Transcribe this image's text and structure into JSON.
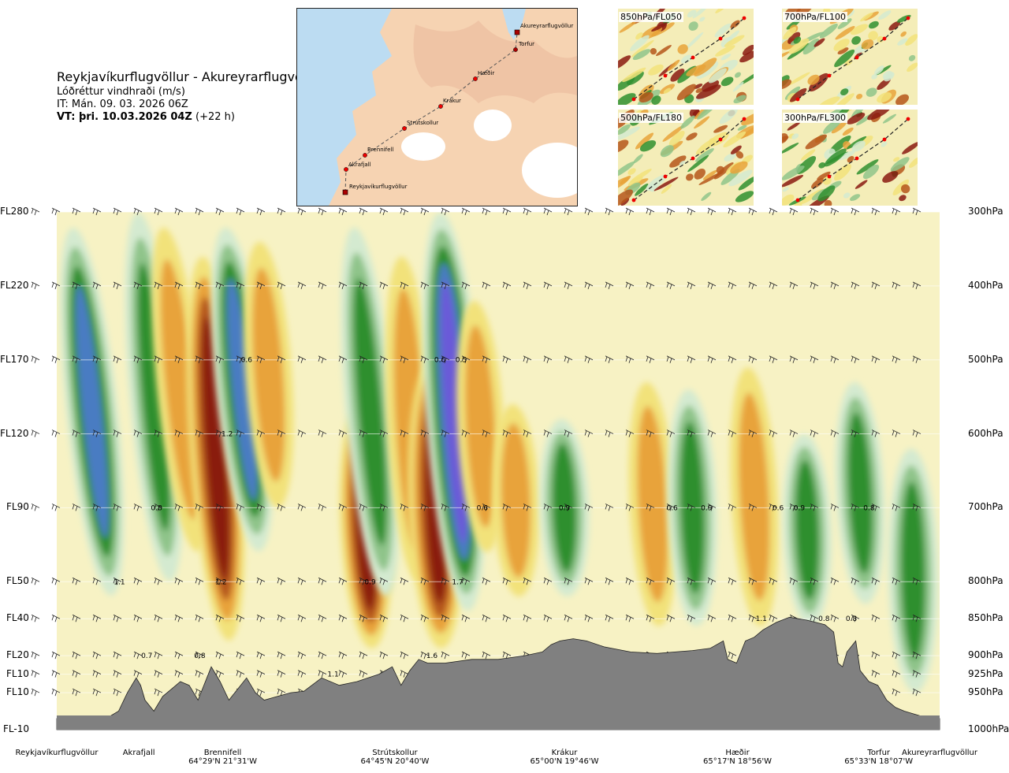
{
  "header": {
    "title": "Reykjavíkurflugvöllur - Akureyrarflugvöllur",
    "variable": "Lóðréttur vindhraði (m/s)",
    "init_time": "IT: Mán. 09. 03. 2026 06Z",
    "valid_prefix": "VT: þri. 10.03.2026 04Z",
    "valid_suffix": " (+22 h)"
  },
  "map": {
    "points": [
      "Akureyrarflugvöllur",
      "Torfur",
      "Hæðir",
      "Krákur",
      "Strútskollur",
      "Brennifell",
      "Akrafjall",
      "Reykjavíkurflugvöllur"
    ]
  },
  "mini_maps": [
    "850hPa/FL050",
    "700hPa/FL100",
    "500hPa/FL180",
    "300hPa/FL300"
  ],
  "colors": {
    "descent_strong": "#8a1a10",
    "descent_mid": "#b5561a",
    "descent_low": "#e8a33a",
    "descent_weak": "#f2e27a",
    "neutral": "#f7f2c4",
    "ascent_weak": "#d4ead0",
    "ascent_low": "#8fc48a",
    "ascent_mid": "#2f8f2f",
    "ascent_strong": "#4a7cc2",
    "ascent_max": "#6a5ad8",
    "terrain": "#808080"
  },
  "chart_data": {
    "type": "heatmap",
    "title": "Reykjavíkurflugvöllur - Akureyrarflugvöllur",
    "variable": "Lóðréttur vindhraði (m/s)",
    "x_domain": [
      0,
      100
    ],
    "levels": [
      {
        "fl": "FL280",
        "hpa": "300hPa",
        "p": 300
      },
      {
        "fl": "FL220",
        "hpa": "400hPa",
        "p": 400
      },
      {
        "fl": "FL170",
        "hpa": "500hPa",
        "p": 500
      },
      {
        "fl": "FL120",
        "hpa": "600hPa",
        "p": 600
      },
      {
        "fl": "FL90",
        "hpa": "700hPa",
        "p": 700
      },
      {
        "fl": "FL50",
        "hpa": "800hPa",
        "p": 800
      },
      {
        "fl": "FL40",
        "hpa": "850hPa",
        "p": 850
      },
      {
        "fl": "FL20",
        "hpa": "900hPa",
        "p": 900
      },
      {
        "fl": "FL10",
        "hpa": "925hPa",
        "p": 925
      },
      {
        "fl": "FL10",
        "hpa": "950hPa",
        "p": 950
      },
      {
        "fl": "FL-10",
        "hpa": "1000hPa",
        "p": 1000
      }
    ],
    "stations": [
      {
        "name": "Reykjavíkurflugvöllur",
        "coord": "",
        "x": 0
      },
      {
        "name": "Akrafjall",
        "coord": "",
        "x": 9.3
      },
      {
        "name": "Brennifell",
        "coord": "64°29'N 21°31'W",
        "x": 18.8
      },
      {
        "name": "Strútskollur",
        "coord": "64°45'N 20°40'W",
        "x": 38.3
      },
      {
        "name": "Krákur",
        "coord": "65°00'N 19°46'W",
        "x": 57.5
      },
      {
        "name": "Hæðir",
        "coord": "65°17'N 18°56'W",
        "x": 77.1
      },
      {
        "name": "Torfur",
        "coord": "65°33'N 18°07'W",
        "x": 93.1
      },
      {
        "name": "Akureyrarflugvöllur",
        "coord": "",
        "x": 100
      }
    ],
    "bands": [
      {
        "x": 4,
        "p_top": 320,
        "p_bot": 820,
        "sign": 1,
        "amp": 1.1,
        "tilt": 6
      },
      {
        "x": 11,
        "p_top": 300,
        "p_bot": 800,
        "sign": 1,
        "amp": 0.8,
        "tilt": 5
      },
      {
        "x": 14,
        "p_top": 320,
        "p_bot": 760,
        "sign": -1,
        "amp": 0.6,
        "tilt": 6
      },
      {
        "x": 18,
        "p_top": 360,
        "p_bot": 880,
        "sign": -1,
        "amp": 1.2,
        "tilt": 4
      },
      {
        "x": 21,
        "p_top": 320,
        "p_bot": 760,
        "sign": 1,
        "amp": 1.2,
        "tilt": 6
      },
      {
        "x": 24,
        "p_top": 340,
        "p_bot": 700,
        "sign": -1,
        "amp": 0.6,
        "tilt": 4
      },
      {
        "x": 35,
        "p_top": 560,
        "p_bot": 890,
        "sign": -1,
        "amp": 1.1,
        "tilt": 3
      },
      {
        "x": 35.5,
        "p_top": 320,
        "p_bot": 820,
        "sign": 1,
        "amp": 0.9,
        "tilt": 5
      },
      {
        "x": 40,
        "p_top": 360,
        "p_bot": 800,
        "sign": -1,
        "amp": 0.6,
        "tilt": 3
      },
      {
        "x": 43,
        "p_top": 500,
        "p_bot": 890,
        "sign": -1,
        "amp": 1.6,
        "tilt": 2
      },
      {
        "x": 45,
        "p_top": 300,
        "p_bot": 840,
        "sign": 1,
        "amp": 1.7,
        "tilt": 4
      },
      {
        "x": 48,
        "p_top": 420,
        "p_bot": 760,
        "sign": -1,
        "amp": 0.6,
        "tilt": 3
      },
      {
        "x": 52,
        "p_top": 560,
        "p_bot": 820,
        "sign": -1,
        "amp": 0.6,
        "tilt": 2
      },
      {
        "x": 57.5,
        "p_top": 580,
        "p_bot": 820,
        "sign": 1,
        "amp": 0.9,
        "tilt": 2
      },
      {
        "x": 67.5,
        "p_top": 530,
        "p_bot": 860,
        "sign": -1,
        "amp": 0.6,
        "tilt": 3
      },
      {
        "x": 72,
        "p_top": 540,
        "p_bot": 860,
        "sign": 1,
        "amp": 0.9,
        "tilt": 2
      },
      {
        "x": 79,
        "p_top": 510,
        "p_bot": 860,
        "sign": -1,
        "amp": 0.6,
        "tilt": 3
      },
      {
        "x": 85,
        "p_top": 600,
        "p_bot": 860,
        "sign": 1,
        "amp": 0.8,
        "tilt": 2
      },
      {
        "x": 91,
        "p_top": 530,
        "p_bot": 830,
        "sign": 1,
        "amp": 0.8,
        "tilt": 3
      },
      {
        "x": 97,
        "p_top": 620,
        "p_bot": 950,
        "sign": 1,
        "amp": 1.0,
        "tilt": 1
      }
    ],
    "annotations": [
      {
        "text": "1.1",
        "x": 7.1,
        "p": 800
      },
      {
        "text": "0.8",
        "x": 11.3,
        "p": 700
      },
      {
        "text": "0.7",
        "x": 10.2,
        "p": 900
      },
      {
        "text": "1.2",
        "x": 18.6,
        "p": 800
      },
      {
        "text": "0.8",
        "x": 16.2,
        "p": 900
      },
      {
        "text": "0.6",
        "x": 21.5,
        "p": 500
      },
      {
        "text": "1.2",
        "x": 19.3,
        "p": 600
      },
      {
        "text": "1.1",
        "x": 31.3,
        "p": 925
      },
      {
        "text": "0.9",
        "x": 35.5,
        "p": 800
      },
      {
        "text": "0.6",
        "x": 43.4,
        "p": 500
      },
      {
        "text": "0.5",
        "x": 45.8,
        "p": 500
      },
      {
        "text": "1.7",
        "x": 45.4,
        "p": 800
      },
      {
        "text": "1.6",
        "x": 42.5,
        "p": 900
      },
      {
        "text": "0.6",
        "x": 48.2,
        "p": 700
      },
      {
        "text": "0.9",
        "x": 57.5,
        "p": 700
      },
      {
        "text": "0.6",
        "x": 69.7,
        "p": 700
      },
      {
        "text": "0.9",
        "x": 73.6,
        "p": 700
      },
      {
        "text": "0.6",
        "x": 81.7,
        "p": 700
      },
      {
        "text": "0.9",
        "x": 84.1,
        "p": 700
      },
      {
        "text": "1.1",
        "x": 79.8,
        "p": 850
      },
      {
        "text": "0.8",
        "x": 86.9,
        "p": 850
      },
      {
        "text": "0.8",
        "x": 90.0,
        "p": 850
      },
      {
        "text": "0.8",
        "x": 92.0,
        "p": 700
      }
    ],
    "terrain_p": [
      [
        0,
        985
      ],
      [
        4,
        985
      ],
      [
        6,
        982
      ],
      [
        7,
        975
      ],
      [
        8,
        950
      ],
      [
        9,
        930
      ],
      [
        9.5,
        940
      ],
      [
        10,
        960
      ],
      [
        11,
        975
      ],
      [
        12,
        955
      ],
      [
        13,
        945
      ],
      [
        14,
        935
      ],
      [
        15,
        940
      ],
      [
        16,
        960
      ],
      [
        17,
        930
      ],
      [
        17.5,
        915
      ],
      [
        18.5,
        935
      ],
      [
        19.5,
        960
      ],
      [
        20.5,
        945
      ],
      [
        21.5,
        930
      ],
      [
        22.5,
        950
      ],
      [
        23.5,
        960
      ],
      [
        25,
        955
      ],
      [
        26.5,
        950
      ],
      [
        28,
        948
      ],
      [
        30,
        930
      ],
      [
        32,
        940
      ],
      [
        34,
        935
      ],
      [
        36.5,
        925
      ],
      [
        38,
        915
      ],
      [
        39,
        940
      ],
      [
        40,
        920
      ],
      [
        41,
        905
      ],
      [
        42,
        910
      ],
      [
        44,
        910
      ],
      [
        47,
        905
      ],
      [
        50,
        905
      ],
      [
        53,
        900
      ],
      [
        55,
        895
      ],
      [
        56,
        885
      ],
      [
        57,
        880
      ],
      [
        58.5,
        877
      ],
      [
        60,
        880
      ],
      [
        62,
        888
      ],
      [
        65,
        895
      ],
      [
        68,
        897
      ],
      [
        70,
        895
      ],
      [
        72,
        893
      ],
      [
        74,
        890
      ],
      [
        75.5,
        880
      ],
      [
        76,
        905
      ],
      [
        77,
        910
      ],
      [
        78,
        880
      ],
      [
        79,
        875
      ],
      [
        80,
        865
      ],
      [
        81.5,
        855
      ],
      [
        83,
        848
      ],
      [
        85,
        852
      ],
      [
        87,
        858
      ],
      [
        88,
        868
      ],
      [
        88.5,
        910
      ],
      [
        89,
        915
      ],
      [
        89.5,
        895
      ],
      [
        90.5,
        880
      ],
      [
        91,
        920
      ],
      [
        92,
        935
      ],
      [
        93,
        940
      ],
      [
        94,
        960
      ],
      [
        95,
        970
      ],
      [
        96,
        975
      ],
      [
        98,
        982
      ],
      [
        100,
        985
      ]
    ]
  }
}
